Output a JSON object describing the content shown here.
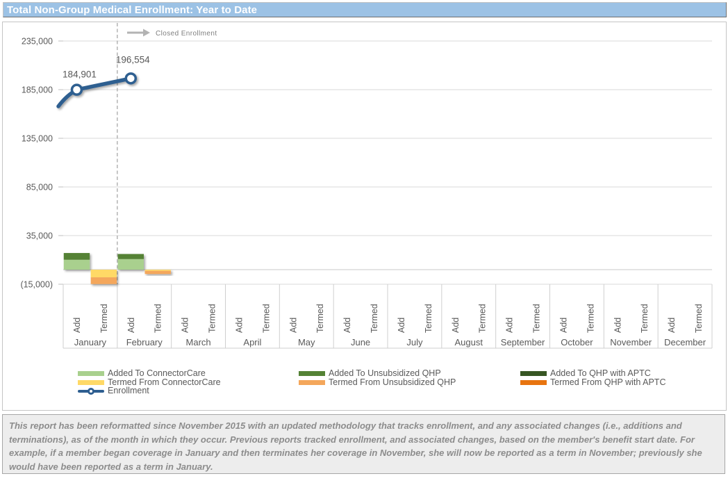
{
  "title_bar": {
    "text": "Total Non-Group Medical Enrollment: Year to Date"
  },
  "colors": {
    "title_bg": "#9cc2e5",
    "title_text": "#ffffff",
    "gridline": "#d9d9d9",
    "axis_text": "#595959",
    "divider": "#a8a8a8",
    "enrollment_line": "#2e5e90",
    "footnote_bg": "#ededed",
    "footnote_text": "#8c8c8c"
  },
  "chart_data": {
    "type": "combo-stacked-bar-line",
    "title": "Total Non-Group Medical Enrollment: Year to Date",
    "months": [
      "January",
      "February",
      "March",
      "April",
      "May",
      "June",
      "July",
      "August",
      "September",
      "October",
      "November",
      "December"
    ],
    "sub_categories": [
      "Add",
      "Termed"
    ],
    "y_axis": {
      "tick_labels": [
        "235,000",
        "185,000",
        "135,000",
        "85,000",
        "35,000",
        "(15,000)"
      ],
      "tick_values": [
        235000,
        185000,
        135000,
        85000,
        35000,
        -15000
      ],
      "min": -15000,
      "max": 245000,
      "grid": true
    },
    "annotation": {
      "label": "Closed Enrollment",
      "divider_after_month": "January",
      "divider_month_boundary_index": 1
    },
    "bar_series_added": [
      {
        "name": "Added To ConnectorCare",
        "color": "#a9d08e",
        "values": [
          10200,
          10900,
          null,
          null,
          null,
          null,
          null,
          null,
          null,
          null,
          null,
          null
        ]
      },
      {
        "name": "Added To Unsubsidized QHP",
        "color": "#548235",
        "values": [
          6900,
          5200,
          null,
          null,
          null,
          null,
          null,
          null,
          null,
          null,
          null,
          null
        ]
      },
      {
        "name": "Added To QHP with APTC",
        "color": "#375623",
        "values": [
          null,
          null,
          null,
          null,
          null,
          null,
          null,
          null,
          null,
          null,
          null,
          null
        ]
      }
    ],
    "bar_series_termed": [
      {
        "name": "Termed From ConnectorCare",
        "color": "#ffd966",
        "values": [
          -7900,
          -1200,
          null,
          null,
          null,
          null,
          null,
          null,
          null,
          null,
          null,
          null
        ]
      },
      {
        "name": "Termed From Unsubsidized QHP",
        "color": "#f4a75b",
        "values": [
          -6900,
          -3300,
          null,
          null,
          null,
          null,
          null,
          null,
          null,
          null,
          null,
          null
        ]
      },
      {
        "name": "Termed From QHP with APTC",
        "color": "#e8740f",
        "values": [
          null,
          null,
          null,
          null,
          null,
          null,
          null,
          null,
          null,
          null,
          null,
          null
        ]
      }
    ],
    "line_series": {
      "name": "Enrollment",
      "color": "#2e5e90",
      "values": [
        184901,
        196554,
        null,
        null,
        null,
        null,
        null,
        null,
        null,
        null,
        null,
        null
      ],
      "point_labels": [
        "184,901",
        "196,554"
      ],
      "enters_from_left_edge_at_approx": 170000
    },
    "legend": {
      "columns": [
        {
          "items": [
            {
              "label": "Added To ConnectorCare",
              "color": "#a9d08e",
              "marker": "bar"
            },
            {
              "label": "Termed From ConnectorCare",
              "color": "#ffd966",
              "marker": "bar"
            },
            {
              "label": "Enrollment",
              "color": "#2e5e90",
              "marker": "line"
            }
          ]
        },
        {
          "items": [
            {
              "label": "Added To Unsubsidized QHP",
              "color": "#548235",
              "marker": "bar"
            },
            {
              "label": "Termed From Unsubsidized QHP",
              "color": "#f4a75b",
              "marker": "bar"
            }
          ]
        },
        {
          "items": [
            {
              "label": "Added To QHP with APTC",
              "color": "#375623",
              "marker": "bar"
            },
            {
              "label": "Termed From QHP with APTC",
              "color": "#e8740f",
              "marker": "bar"
            }
          ]
        }
      ]
    }
  },
  "footer": {
    "text": "This report has been reformatted since November 2015 with an updated methodology that tracks enrollment, and any associated changes (i.e., additions and terminations), as of the month in which they occur.  Previous reports tracked enrollment, and associated changes, based on the member's benefit start date.  For example, if a member began coverage in January and then terminates her coverage in November, she will now be reported as a term in November; previously she would have been reported as a term in January."
  }
}
